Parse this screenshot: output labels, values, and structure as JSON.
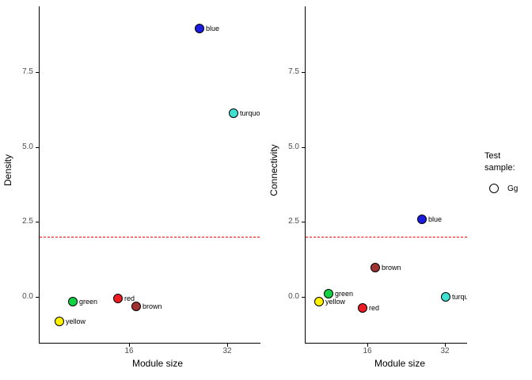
{
  "legend": {
    "title_lines": [
      "Test",
      "sample:"
    ],
    "items": [
      {
        "label": "Gg",
        "marker": "open-circle"
      }
    ]
  },
  "chart_data": [
    {
      "type": "scatter",
      "title": "",
      "xlabel": "Module size",
      "ylabel": "Density",
      "x_scale": "log2",
      "xlim": [
        8.55,
        40.2
      ],
      "ylim": [
        -1.53,
        9.69
      ],
      "x_ticks": [
        {
          "value": 16,
          "label": "16"
        },
        {
          "value": 32,
          "label": "32"
        }
      ],
      "y_ticks": [
        {
          "value": 7.5,
          "label": "7.5"
        },
        {
          "value": 5.0,
          "label": "5.0"
        },
        {
          "value": 2.5,
          "label": "2.5"
        },
        {
          "value": 0.0,
          "label": "0.0"
        }
      ],
      "hline": {
        "y": 2.0,
        "color": "#ff0000",
        "style": "dashed"
      },
      "grid": false,
      "points": [
        {
          "label": "blue",
          "color": "#1c1cdf",
          "x": 26.3,
          "y": 8.95
        },
        {
          "label": "turquoise",
          "color": "#40e0d0",
          "x": 33.5,
          "y": 6.13
        },
        {
          "label": "green",
          "color": "#12d244",
          "x": 10.8,
          "y": -0.15
        },
        {
          "label": "red",
          "color": "#ec1c24",
          "x": 14.8,
          "y": -0.05
        },
        {
          "label": "brown",
          "color": "#a03232",
          "x": 16.9,
          "y": -0.32
        },
        {
          "label": "yellow",
          "color": "#fff200",
          "x": 9.8,
          "y": -0.81
        }
      ]
    },
    {
      "type": "scatter",
      "title": "",
      "xlabel": "Module size",
      "ylabel": "Connectivity",
      "x_scale": "log2",
      "xlim": [
        9.22,
        39.0
      ],
      "ylim": [
        -1.53,
        9.69
      ],
      "x_ticks": [
        {
          "value": 16,
          "label": "16"
        },
        {
          "value": 32,
          "label": "32"
        }
      ],
      "y_ticks": [
        {
          "value": 7.5,
          "label": "7.5"
        },
        {
          "value": 5.0,
          "label": "5.0"
        },
        {
          "value": 2.5,
          "label": "2.5"
        },
        {
          "value": 0.0,
          "label": "0.0"
        }
      ],
      "hline": {
        "y": 2.0,
        "color": "#ff0000",
        "style": "dashed"
      },
      "grid": false,
      "points": [
        {
          "label": "blue",
          "color": "#1c1cdf",
          "x": 26.1,
          "y": 2.59
        },
        {
          "label": "brown",
          "color": "#a03232",
          "x": 17.2,
          "y": 0.97
        },
        {
          "label": "green",
          "color": "#12d244",
          "x": 11.3,
          "y": 0.11
        },
        {
          "label": "yellow",
          "color": "#fff200",
          "x": 10.4,
          "y": -0.16
        },
        {
          "label": "red",
          "color": "#ec1c24",
          "x": 15.3,
          "y": -0.37
        },
        {
          "label": "turquoise",
          "color": "#40e0d0",
          "x": 32.3,
          "y": 0.0
        }
      ]
    }
  ]
}
